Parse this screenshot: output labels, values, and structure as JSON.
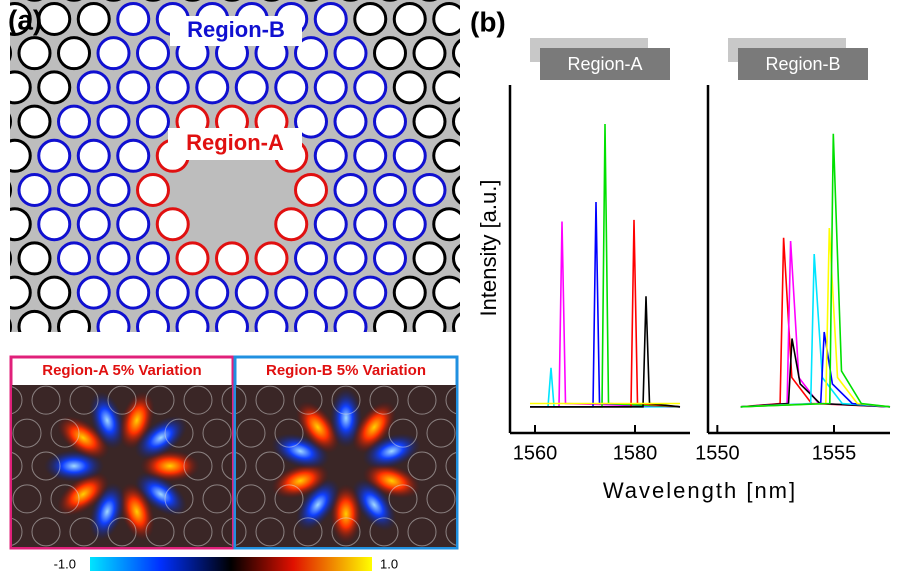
{
  "panel_a": {
    "label": "(a)",
    "region_b_label": "Region-B",
    "region_a_label": "Region-A",
    "mode_a_title": "Region-A 5% Variation",
    "mode_b_title": "Region-B 5% Variation",
    "colorbar": {
      "lim": [
        -1,
        1
      ],
      "ticks": [
        {
          "value": -1,
          "label": "-1.0"
        },
        {
          "value": 1,
          "label": "1.0"
        }
      ]
    }
  },
  "panel_b": {
    "label": "(b)",
    "ylabel": "Intensity [a.u.]",
    "xlabel": "Wavelength [nm]"
  },
  "chart_data": [
    {
      "type": "line",
      "title": "Region-A",
      "xlim": [
        1555,
        1591
      ],
      "xticks": [
        1560,
        1580
      ],
      "ylim": [
        0,
        1
      ],
      "series": [
        {
          "color": "#00e5ff",
          "x": [
            1559,
            1562.6,
            1563.2,
            1563.8,
            1589
          ],
          "values": [
            0.01,
            0.01,
            0.13,
            0.01,
            0.01
          ]
        },
        {
          "color": "#ff00ff",
          "x": [
            1559,
            1564.8,
            1565.4,
            1566.1,
            1589
          ],
          "values": [
            0.01,
            0.01,
            0.58,
            0.02,
            0.01
          ]
        },
        {
          "color": "#0000ff",
          "x": [
            1559,
            1571.6,
            1572.2,
            1572.9,
            1589
          ],
          "values": [
            0.01,
            0.01,
            0.64,
            0.02,
            0.01
          ]
        },
        {
          "color": "#00e000",
          "x": [
            1559,
            1573.4,
            1574,
            1574.7,
            1589
          ],
          "values": [
            0.01,
            0.01,
            0.88,
            0.02,
            0.01
          ]
        },
        {
          "color": "#ff0000",
          "x": [
            1559,
            1579.2,
            1579.8,
            1580.5,
            1589
          ],
          "values": [
            0.01,
            0.01,
            0.585,
            0.02,
            0.01
          ]
        },
        {
          "color": "#000000",
          "x": [
            1559,
            1581.6,
            1582.2,
            1582.9,
            1589
          ],
          "values": [
            0.01,
            0.01,
            0.35,
            0.02,
            0.01
          ]
        },
        {
          "color": "#ffff00",
          "x": [
            1559,
            1589
          ],
          "values": [
            0.02,
            0.02
          ]
        }
      ]
    },
    {
      "type": "line",
      "title": "Region-B",
      "xlim": [
        1549.6,
        1557.4
      ],
      "xticks": [
        1550,
        1555
      ],
      "ylim": [
        0,
        1
      ],
      "series": [
        {
          "color": "#ff0000",
          "x": [
            1551,
            1552.69,
            1552.84,
            1553.19,
            1554.04,
            1557.4
          ],
          "values": [
            0.01,
            0.02,
            0.53,
            0.1,
            0.02,
            0.01
          ]
        },
        {
          "color": "#ff00ff",
          "x": [
            1551,
            1552.99,
            1553.14,
            1553.49,
            1554.34,
            1557.4
          ],
          "values": [
            0.01,
            0.02,
            0.52,
            0.1,
            0.02,
            0.01
          ]
        },
        {
          "color": "#000000",
          "x": [
            1551,
            1553.05,
            1553.2,
            1553.55,
            1554.4,
            1557.4
          ],
          "values": [
            0.01,
            0.02,
            0.22,
            0.08,
            0.02,
            0.01
          ]
        },
        {
          "color": "#00e5ff",
          "x": [
            1551,
            1554.0,
            1554.15,
            1554.5,
            1555.35,
            1557.4
          ],
          "values": [
            0.01,
            0.02,
            0.48,
            0.1,
            0.02,
            0.01
          ]
        },
        {
          "color": "#0000ff",
          "x": [
            1551,
            1554.43,
            1554.58,
            1554.93,
            1555.78,
            1557.4
          ],
          "values": [
            0.01,
            0.02,
            0.24,
            0.08,
            0.02,
            0.01
          ]
        },
        {
          "color": "#ffff00",
          "x": [
            1551,
            1554.65,
            1554.8,
            1555.15,
            1556.0,
            1557.4
          ],
          "values": [
            0.01,
            0.02,
            0.56,
            0.1,
            0.02,
            0.01
          ]
        },
        {
          "color": "#00e000",
          "x": [
            1551,
            1554.82,
            1554.97,
            1555.32,
            1556.17,
            1557.4
          ],
          "values": [
            0.01,
            0.02,
            0.85,
            0.12,
            0.02,
            0.01
          ]
        }
      ]
    }
  ]
}
